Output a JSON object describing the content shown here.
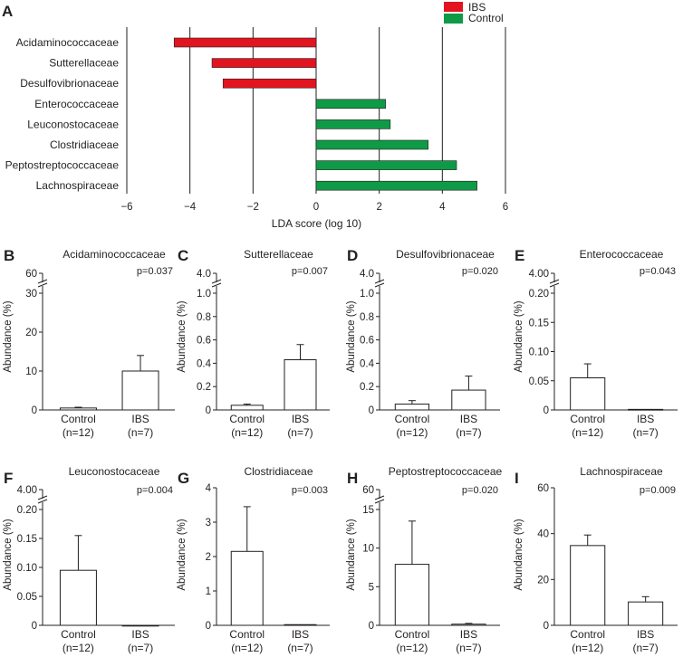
{
  "colors": {
    "ibs": "#e2141f",
    "control": "#0f9a47",
    "ink": "#231f20"
  },
  "chart_data": [
    {
      "id": "A",
      "type": "bar",
      "orientation": "horizontal",
      "xlabel": "LDA score (log 10)",
      "xlim": [
        -6,
        6
      ],
      "xticks": [
        "−6",
        "−4",
        "−2",
        "0",
        "2",
        "4",
        "6"
      ],
      "legend": [
        {
          "name": "IBS",
          "color": "#e2141f"
        },
        {
          "name": "Control",
          "color": "#0f9a47"
        }
      ],
      "legend_position": "top-right",
      "categories": [
        "Acidaminococcaceae",
        "Sutterellaceae",
        "Desulfovibrionaceae",
        "Enterococcaceae",
        "Leuconostocaceae",
        "Clostridiaceae",
        "Peptostreptococcaceae",
        "Lachnospiraceae"
      ],
      "values": [
        -4.5,
        -3.3,
        -2.95,
        2.2,
        2.35,
        3.55,
        4.45,
        5.1
      ],
      "groups": [
        "IBS",
        "IBS",
        "IBS",
        "Control",
        "Control",
        "Control",
        "Control",
        "Control"
      ]
    },
    {
      "id": "B",
      "type": "bar",
      "title": "Acidaminococcaceae",
      "p": "p=0.037",
      "ylabel": "Abundance (%)",
      "categories": [
        "Control",
        "IBS"
      ],
      "ns": [
        "(n=12)",
        "(n=7)"
      ],
      "values": [
        0.5,
        10
      ],
      "errors": [
        0.2,
        4
      ],
      "ylim": [
        0,
        30
      ],
      "yticks": [
        "0",
        "10",
        "20",
        "30"
      ],
      "break_labels": [
        "30",
        "60"
      ]
    },
    {
      "id": "C",
      "type": "bar",
      "title": "Sutterellaceae",
      "p": "p=0.007",
      "ylabel": "Abundance (%)",
      "categories": [
        "Control",
        "IBS"
      ],
      "ns": [
        "(n=12)",
        "(n=7)"
      ],
      "values": [
        0.04,
        0.43
      ],
      "errors": [
        0.01,
        0.13
      ],
      "ylim": [
        0,
        1
      ],
      "yticks": [
        "0",
        "0.2",
        "0.4",
        "0.6",
        "0.8",
        "1.0"
      ],
      "break_labels": [
        "1.0",
        "4.0"
      ]
    },
    {
      "id": "D",
      "type": "bar",
      "title": "Desulfovibrionaceae",
      "p": "p=0.020",
      "ylabel": "Abundance (%)",
      "categories": [
        "Control",
        "IBS"
      ],
      "ns": [
        "(n=12)",
        "(n=7)"
      ],
      "values": [
        0.05,
        0.17
      ],
      "errors": [
        0.03,
        0.12
      ],
      "ylim": [
        0,
        1
      ],
      "yticks": [
        "0",
        "0.2",
        "0.4",
        "0.6",
        "0.8",
        "1.0"
      ],
      "break_labels": [
        "1.0",
        "4.0"
      ]
    },
    {
      "id": "E",
      "type": "bar",
      "title": "Enterococcaceae",
      "p": "p=0.043",
      "ylabel": "Abundance (%)",
      "categories": [
        "Control",
        "IBS"
      ],
      "ns": [
        "(n=12)",
        "(n=7)"
      ],
      "values": [
        0.055,
        0.001
      ],
      "errors": [
        0.024,
        0
      ],
      "ylim": [
        0,
        0.2
      ],
      "yticks": [
        "0",
        "0.05",
        "0.10",
        "0.15",
        "0.20"
      ],
      "break_labels": [
        "0.20",
        "4.00"
      ]
    },
    {
      "id": "F",
      "type": "bar",
      "title": "Leuconostocaceae",
      "p": "p=0.004",
      "ylabel": "Abundance (%)",
      "categories": [
        "Control",
        "IBS"
      ],
      "ns": [
        "(n=12)",
        "(n=7)"
      ],
      "values": [
        0.095,
        0
      ],
      "errors": [
        0.06,
        0
      ],
      "ylim": [
        0,
        0.2
      ],
      "yticks": [
        "0",
        "0.05",
        "0.10",
        "0.15",
        "0.20"
      ],
      "break_labels": [
        "0.20",
        "4.00"
      ]
    },
    {
      "id": "G",
      "type": "bar",
      "title": "Clostridiaceae",
      "p": "p=0.003",
      "ylabel": "Abundance (%)",
      "categories": [
        "Control",
        "IBS"
      ],
      "ns": [
        "(n=12)",
        "(n=7)"
      ],
      "values": [
        2.15,
        0.02
      ],
      "errors": [
        1.3,
        0
      ],
      "ylim": [
        0,
        4
      ],
      "yticks": [
        "0",
        "1",
        "2",
        "3",
        "4"
      ],
      "break_labels": []
    },
    {
      "id": "H",
      "type": "bar",
      "title": "Peptostreptococcaceae",
      "p": "p=0.020",
      "ylabel": "Abundance (%)",
      "categories": [
        "Control",
        "IBS"
      ],
      "ns": [
        "(n=12)",
        "(n=7)"
      ],
      "values": [
        7.9,
        0.15
      ],
      "errors": [
        5.6,
        0.1
      ],
      "ylim": [
        0,
        15
      ],
      "yticks": [
        "0",
        "5",
        "10",
        "15"
      ],
      "break_labels": [
        "15",
        "60"
      ]
    },
    {
      "id": "I",
      "type": "bar",
      "title": "Lachnospiraceae",
      "p": "p=0.009",
      "ylabel": "Abundance (%)",
      "categories": [
        "Control",
        "IBS"
      ],
      "ns": [
        "(n=12)",
        "(n=7)"
      ],
      "values": [
        34.8,
        10.2
      ],
      "errors": [
        4.6,
        2.3
      ],
      "ylim": [
        0,
        60
      ],
      "yticks": [
        "0",
        "20",
        "40",
        "60"
      ],
      "break_labels": []
    }
  ]
}
